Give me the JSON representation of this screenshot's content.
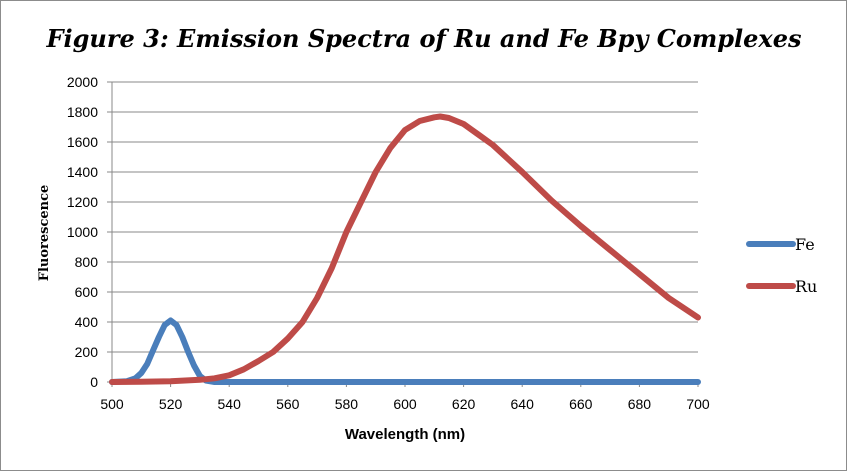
{
  "chart_data": {
    "type": "line",
    "title": "Figure 3: Emission Spectra of Ru and Fe Bpy Complexes",
    "xlabel": "Wavelength (nm)",
    "ylabel": "Fluorescence",
    "xlim": [
      500,
      700
    ],
    "ylim": [
      0,
      2000
    ],
    "xticks": [
      500,
      520,
      540,
      560,
      580,
      600,
      620,
      640,
      660,
      680,
      700
    ],
    "yticks": [
      0,
      200,
      400,
      600,
      800,
      1000,
      1200,
      1400,
      1600,
      1800,
      2000
    ],
    "grid": "horizontal",
    "legend_position": "right",
    "series": [
      {
        "name": "Fe",
        "color": "#4a7ebb",
        "x": [
          500,
          505,
          508,
          510,
          512,
          514,
          516,
          518,
          520,
          522,
          524,
          526,
          528,
          530,
          532,
          535,
          540,
          560,
          580,
          600,
          620,
          640,
          660,
          680,
          700
        ],
        "y": [
          0,
          5,
          25,
          60,
          120,
          210,
          300,
          380,
          410,
          380,
          300,
          200,
          110,
          40,
          10,
          0,
          0,
          0,
          0,
          0,
          0,
          0,
          0,
          0,
          0
        ]
      },
      {
        "name": "Ru",
        "color": "#be4b48",
        "x": [
          500,
          510,
          520,
          530,
          535,
          540,
          545,
          550,
          555,
          560,
          565,
          570,
          575,
          580,
          585,
          590,
          595,
          600,
          605,
          610,
          612,
          615,
          620,
          625,
          630,
          640,
          650,
          660,
          670,
          680,
          690,
          700
        ],
        "y": [
          0,
          2,
          5,
          15,
          25,
          45,
          85,
          140,
          200,
          290,
          400,
          560,
          760,
          1000,
          1200,
          1400,
          1560,
          1680,
          1740,
          1765,
          1770,
          1760,
          1720,
          1650,
          1580,
          1400,
          1210,
          1040,
          880,
          720,
          560,
          430
        ]
      }
    ]
  }
}
